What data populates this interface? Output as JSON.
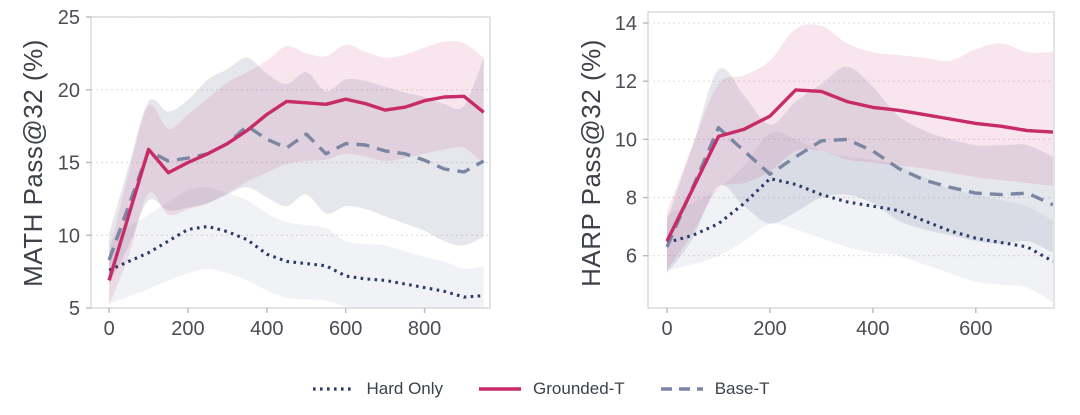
{
  "legend": {
    "items": [
      {
        "label": "Hard Only",
        "series_key": "hard_only",
        "color": "#2b3a6b",
        "line_style": "dotted"
      },
      {
        "label": "Grounded-T",
        "series_key": "grounded_t",
        "color": "#c72b68",
        "line_style": "solid"
      },
      {
        "label": "Base-T",
        "series_key": "base_t",
        "color": "#7b86a4",
        "line_style": "dashed"
      }
    ]
  },
  "colors": {
    "grounded_line": "#c72b68",
    "base_line": "#7b86a4",
    "hard_line": "#2b3a6b",
    "grounded_band": "rgba(199,43,104,0.12)",
    "base_band": "rgba(123,134,164,0.20)",
    "hard_band": "rgba(148,158,184,0.13)",
    "grid": "#e9dee4",
    "panel_border": "#d8d8dd",
    "tick_text": "#4a4d55",
    "axis_title": "#3d4149"
  },
  "chart_data": [
    {
      "type": "line",
      "title": "",
      "xlabel": "",
      "ylabel": "MATH Pass@32 (%)",
      "xticks": [
        0,
        200,
        400,
        600,
        800
      ],
      "yticks": [
        5,
        10,
        15,
        20,
        25
      ],
      "xlim": [
        -46,
        966
      ],
      "ylim": [
        5,
        25
      ],
      "grid": "horizontal",
      "x": [
        0,
        50,
        100,
        150,
        200,
        250,
        300,
        350,
        400,
        450,
        500,
        550,
        600,
        650,
        700,
        750,
        800,
        850,
        900,
        950
      ],
      "series": [
        {
          "name": "Hard Only",
          "key": "hard_only",
          "style": "dotted",
          "color": "#2b3a6b",
          "band_color": "rgba(148,158,184,0.13)",
          "values": [
            7.6,
            8.2,
            8.8,
            9.6,
            10.4,
            10.6,
            10.25,
            9.7,
            8.7,
            8.2,
            8.05,
            7.9,
            7.2,
            7.0,
            6.9,
            6.65,
            6.4,
            6.15,
            5.75,
            5.85
          ],
          "band_lo": [
            5.3,
            5.8,
            6.3,
            6.9,
            7.4,
            7.7,
            7.4,
            6.9,
            6.2,
            5.7,
            5.6,
            5.5,
            5.1,
            5.0,
            5.0,
            4.9,
            4.8,
            4.7,
            4.5,
            4.6
          ],
          "band_hi": [
            9.6,
            10.6,
            11.4,
            12.3,
            13.1,
            13.3,
            12.9,
            12.4,
            11.5,
            10.9,
            10.7,
            10.5,
            9.6,
            9.4,
            9.3,
            8.9,
            8.5,
            8.2,
            7.7,
            7.9
          ]
        },
        {
          "name": "Base-T",
          "key": "base_t",
          "style": "dashed",
          "color": "#7b86a4",
          "band_color": "rgba(123,134,164,0.20)",
          "values": [
            8.3,
            12.05,
            15.8,
            15.1,
            15.3,
            15.6,
            16.3,
            17.5,
            16.6,
            16.0,
            16.95,
            15.6,
            16.3,
            16.2,
            15.8,
            15.6,
            15.15,
            14.55,
            14.35,
            15.1
          ],
          "band_lo": [
            6.6,
            9.3,
            12.4,
            11.7,
            11.9,
            12.2,
            12.8,
            13.3,
            12.6,
            12.0,
            12.8,
            11.5,
            12.0,
            11.8,
            11.3,
            10.8,
            10.3,
            9.6,
            9.3,
            9.9
          ],
          "band_hi": [
            10.1,
            14.8,
            19.2,
            18.5,
            19.3,
            20.7,
            21.4,
            22.2,
            21.1,
            20.4,
            21.2,
            19.9,
            20.7,
            20.6,
            20.2,
            19.8,
            19.5,
            19.0,
            18.9,
            22.2
          ]
        },
        {
          "name": "Grounded-T",
          "key": "grounded_t",
          "style": "solid",
          "color": "#c72b68",
          "band_color": "rgba(199,43,104,0.12)",
          "values": [
            6.9,
            11.4,
            15.9,
            14.3,
            15.0,
            15.6,
            16.3,
            17.2,
            18.3,
            19.2,
            19.1,
            19.0,
            19.35,
            19.05,
            18.6,
            18.8,
            19.25,
            19.5,
            19.55,
            18.45
          ],
          "band_lo": [
            5.2,
            8.6,
            12.9,
            11.4,
            11.8,
            12.2,
            12.9,
            13.7,
            14.3,
            14.9,
            15.1,
            15.2,
            15.6,
            15.4,
            15.1,
            15.3,
            15.6,
            15.9,
            16.0,
            14.9
          ],
          "band_hi": [
            8.7,
            14.3,
            18.9,
            17.3,
            18.3,
            19.4,
            20.5,
            21.2,
            22.0,
            23.0,
            22.5,
            22.3,
            23.1,
            22.6,
            22.2,
            22.4,
            22.9,
            23.3,
            23.2,
            22.2
          ]
        }
      ]
    },
    {
      "type": "line",
      "title": "",
      "xlabel": "",
      "ylabel": "HARP Pass@32 (%)",
      "xticks": [
        0,
        200,
        400,
        600
      ],
      "yticks": [
        6,
        8,
        10,
        12,
        14
      ],
      "xlim": [
        -37,
        752
      ],
      "ylim": [
        4.2,
        14.38
      ],
      "grid": "horizontal",
      "x": [
        0,
        50,
        100,
        150,
        200,
        250,
        300,
        350,
        400,
        450,
        500,
        550,
        600,
        650,
        700,
        750
      ],
      "series": [
        {
          "name": "Hard Only",
          "key": "hard_only",
          "style": "dotted",
          "color": "#2b3a6b",
          "band_color": "rgba(148,158,184,0.13)",
          "values": [
            6.45,
            6.7,
            7.1,
            7.8,
            8.65,
            8.45,
            8.1,
            7.85,
            7.7,
            7.55,
            7.2,
            6.85,
            6.6,
            6.45,
            6.3,
            5.8
          ],
          "band_lo": [
            5.5,
            5.7,
            6.0,
            6.5,
            7.1,
            6.9,
            6.6,
            6.3,
            6.1,
            6.0,
            5.7,
            5.4,
            5.1,
            5.0,
            4.9,
            4.4
          ],
          "band_hi": [
            7.4,
            7.8,
            8.3,
            9.1,
            10.2,
            10.0,
            9.6,
            9.4,
            9.3,
            9.1,
            8.7,
            8.3,
            8.1,
            7.9,
            7.7,
            7.2
          ]
        },
        {
          "name": "Base-T",
          "key": "base_t",
          "style": "dashed",
          "color": "#7b86a4",
          "band_color": "rgba(123,134,164,0.20)",
          "values": [
            6.3,
            8.35,
            10.4,
            9.6,
            8.8,
            9.4,
            9.95,
            10.0,
            9.6,
            9.0,
            8.6,
            8.35,
            8.15,
            8.1,
            8.15,
            7.75
          ],
          "band_lo": [
            5.4,
            6.6,
            8.4,
            7.7,
            7.1,
            7.5,
            8.0,
            8.1,
            7.8,
            7.2,
            6.9,
            6.7,
            6.5,
            6.4,
            6.5,
            6.1
          ],
          "band_hi": [
            7.2,
            9.8,
            12.4,
            11.5,
            10.5,
            11.3,
            11.9,
            12.5,
            11.8,
            10.8,
            10.3,
            10.0,
            9.8,
            9.8,
            9.8,
            9.4
          ]
        },
        {
          "name": "Grounded-T",
          "key": "grounded_t",
          "style": "solid",
          "color": "#c72b68",
          "band_color": "rgba(199,43,104,0.12)",
          "values": [
            6.5,
            8.3,
            10.1,
            10.35,
            10.8,
            11.7,
            11.65,
            11.3,
            11.1,
            11.0,
            10.85,
            10.7,
            10.55,
            10.45,
            10.3,
            10.25
          ],
          "band_lo": [
            5.5,
            6.8,
            8.3,
            8.5,
            8.9,
            9.6,
            9.6,
            9.3,
            9.2,
            9.1,
            9.0,
            8.85,
            8.7,
            8.6,
            8.5,
            8.4
          ],
          "band_hi": [
            7.5,
            9.8,
            11.9,
            12.2,
            12.7,
            13.8,
            13.9,
            13.3,
            13.0,
            12.9,
            12.8,
            12.7,
            13.1,
            13.3,
            13.0,
            13.0
          ]
        }
      ]
    }
  ]
}
